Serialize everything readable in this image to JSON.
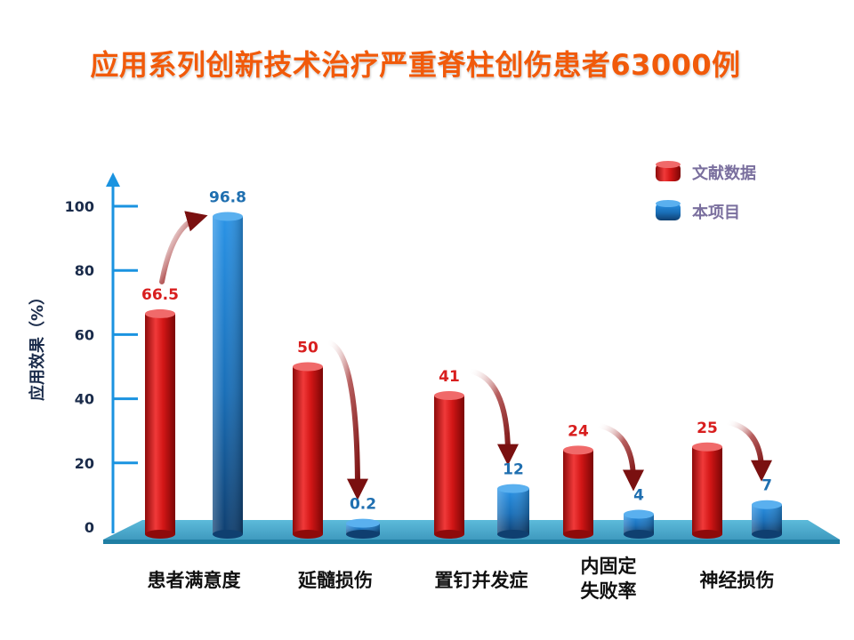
{
  "title": "应用系列创新技术治疗严重脊柱创伤患者63000例",
  "chart_data": {
    "type": "bar",
    "title": "应用系列创新技术治疗严重脊柱创伤患者63000例",
    "ylabel": "应用效果（%）",
    "xlabel": "",
    "ylim": [
      0,
      100
    ],
    "yticks": [
      "0",
      "20",
      "40",
      "60",
      "80",
      "100"
    ],
    "categories": [
      "患者满意度",
      "延髓损伤",
      "置钉并发症",
      "内固定\n失败率",
      "神经损伤"
    ],
    "series": [
      {
        "name": "文献数据",
        "color": "#d81e1e",
        "values": [
          66.5,
          50,
          41,
          24,
          25
        ],
        "labels": [
          "66.5",
          "50",
          "41",
          "24",
          "25"
        ]
      },
      {
        "name": "本项目",
        "color": "#1f7fd0",
        "values": [
          96.8,
          0.2,
          12,
          4,
          7
        ],
        "labels": [
          "96.8",
          "0.2",
          "12",
          "4",
          "7"
        ]
      }
    ],
    "legend_position": "top-right",
    "grid": false
  }
}
